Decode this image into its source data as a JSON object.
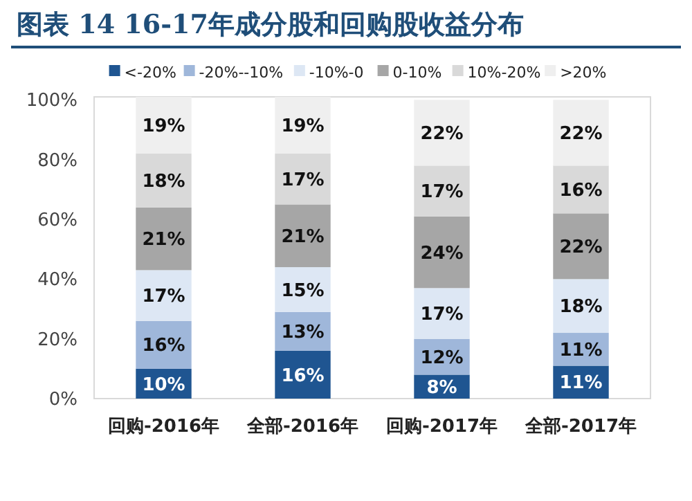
{
  "chart_data": {
    "type": "bar",
    "title": "图表 14   16-17年成分股和回购股收益分布",
    "stacked": true,
    "legend": "top",
    "categories": [
      "回购-2016年",
      "全部-2016年",
      "回购-2017年",
      "全部-2017年"
    ],
    "ylim": [
      0,
      101
    ],
    "yticks": [
      {
        "value": 0,
        "label": "0%"
      },
      {
        "value": 20,
        "label": "20%"
      },
      {
        "value": 40,
        "label": "40%"
      },
      {
        "value": 60,
        "label": "60%"
      },
      {
        "value": 80,
        "label": "80%"
      },
      {
        "value": 100,
        "label": "100%"
      }
    ],
    "series": [
      {
        "name": "<-20%",
        "color": "#1f5591",
        "values": [
          10,
          16,
          8,
          11
        ],
        "value_labels": [
          "10%",
          "16%",
          "8%",
          "11%"
        ]
      },
      {
        "name": "-20%--10%",
        "color": "#9fb7da",
        "values": [
          16,
          13,
          12,
          11
        ],
        "value_labels": [
          "16%",
          "13%",
          "12%",
          "11%"
        ]
      },
      {
        "name": "-10%-0",
        "color": "#dde7f4",
        "values": [
          17,
          15,
          17,
          18
        ],
        "value_labels": [
          "17%",
          "15%",
          "17%",
          "18%"
        ]
      },
      {
        "name": "0-10%",
        "color": "#a6a6a6",
        "values": [
          21,
          21,
          24,
          22
        ],
        "value_labels": [
          "21%",
          "21%",
          "24%",
          "22%"
        ]
      },
      {
        "name": "10%-20%",
        "color": "#d9d9d9",
        "values": [
          18,
          17,
          17,
          16
        ],
        "value_labels": [
          "18%",
          "17%",
          "17%",
          "16%"
        ]
      },
      {
        "name": ">20%",
        "color": "#efefef",
        "values": [
          19,
          19,
          22,
          22
        ],
        "value_labels": [
          "19%",
          "19%",
          "22%",
          "22%"
        ]
      }
    ]
  }
}
